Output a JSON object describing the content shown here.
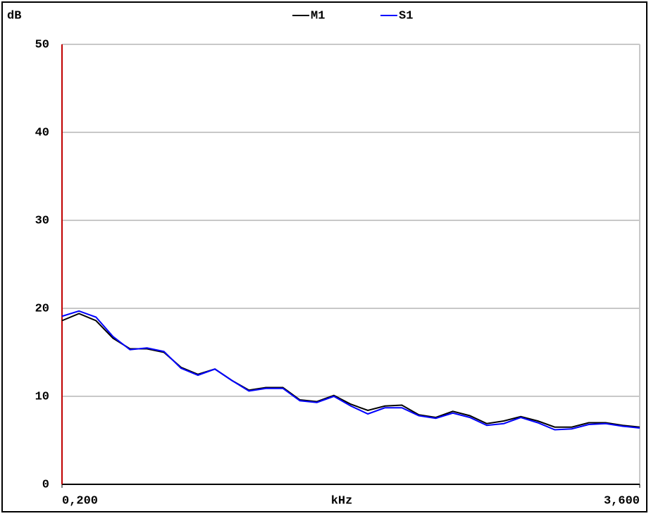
{
  "chart_data": {
    "type": "line",
    "y_label": "dB",
    "x_label": "kHz",
    "x": [
      0.2,
      0.3,
      0.4,
      0.5,
      0.6,
      0.7,
      0.8,
      0.9,
      1.0,
      1.1,
      1.2,
      1.3,
      1.4,
      1.5,
      1.6,
      1.7,
      1.8,
      1.9,
      2.0,
      2.1,
      2.2,
      2.3,
      2.4,
      2.5,
      2.6,
      2.7,
      2.8,
      2.9,
      3.0,
      3.1,
      3.2,
      3.3,
      3.4,
      3.5,
      3.6
    ],
    "series": [
      {
        "name": "M1",
        "color": "#000000",
        "values": [
          18.6,
          19.4,
          18.6,
          16.6,
          15.4,
          15.4,
          15.0,
          13.3,
          12.5,
          13.1,
          11.8,
          10.7,
          11.0,
          11.0,
          9.6,
          9.4,
          10.1,
          9.1,
          8.4,
          8.9,
          9.0,
          7.9,
          7.6,
          8.3,
          7.8,
          6.9,
          7.2,
          7.7,
          7.2,
          6.5,
          6.5,
          7.0,
          7.0,
          6.7,
          6.5
        ]
      },
      {
        "name": "S1",
        "color": "#0000ff",
        "values": [
          19.1,
          19.7,
          19.0,
          16.8,
          15.3,
          15.5,
          15.1,
          13.2,
          12.4,
          13.1,
          11.8,
          10.6,
          10.9,
          10.9,
          9.5,
          9.3,
          10.0,
          8.9,
          8.0,
          8.7,
          8.7,
          7.8,
          7.5,
          8.1,
          7.6,
          6.7,
          6.9,
          7.6,
          7.0,
          6.2,
          6.3,
          6.8,
          6.9,
          6.6,
          6.4
        ]
      }
    ],
    "xlim": [
      0.2,
      3.6
    ],
    "xticks": [
      {
        "value": 0.2,
        "label": "0,200"
      },
      {
        "value": 3.6,
        "label": "3,600"
      }
    ],
    "ylim": [
      0,
      50
    ],
    "yticks": [
      0,
      10,
      20,
      30,
      40,
      50
    ],
    "grid": true,
    "y_axis_color": "#c00000"
  }
}
